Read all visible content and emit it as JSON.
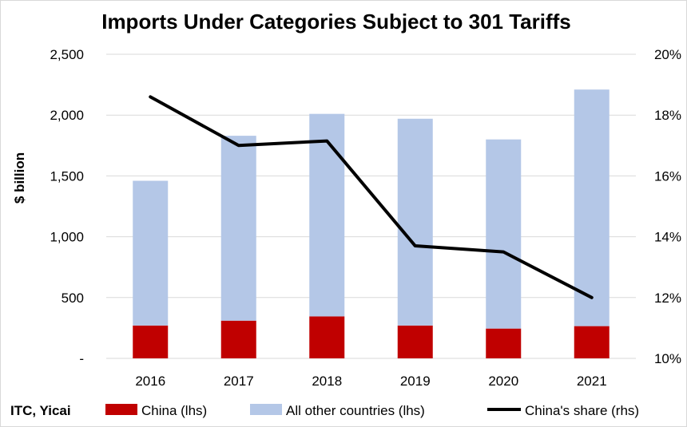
{
  "chart_data": {
    "type": "bar",
    "title": "Imports Under Categories Subject to 301 Tariffs",
    "ylabel": "$ billion",
    "y2label": "",
    "categories": [
      "2016",
      "2017",
      "2018",
      "2019",
      "2020",
      "2021"
    ],
    "stacked": true,
    "series": [
      {
        "name": "China (lhs)",
        "type": "bar",
        "axis": "left",
        "color": "#c00000",
        "values": [
          270,
          310,
          345,
          270,
          245,
          265
        ]
      },
      {
        "name": "All other countries (lhs)",
        "type": "bar",
        "axis": "left",
        "color": "#b4c7e7",
        "values": [
          1190,
          1520,
          1665,
          1700,
          1555,
          1945
        ]
      },
      {
        "name": "China's share (rhs)",
        "type": "line",
        "axis": "right",
        "color": "#000000",
        "values": [
          18.6,
          17.0,
          17.15,
          13.7,
          13.5,
          12.0
        ]
      }
    ],
    "ylim": [
      0,
      2500
    ],
    "yticks": [
      0,
      500,
      1000,
      1500,
      2000,
      2500
    ],
    "ytick_labels": [
      "-",
      "500",
      "1,000",
      "1,500",
      "2,000",
      "2,500"
    ],
    "y2lim": [
      10,
      20
    ],
    "y2ticks": [
      10,
      12,
      14,
      16,
      18,
      20
    ],
    "y2tick_labels": [
      "10%",
      "12%",
      "14%",
      "16%",
      "18%",
      "20%"
    ],
    "grid": true,
    "legend_position": "bottom"
  },
  "source": "ITC, Yicai"
}
